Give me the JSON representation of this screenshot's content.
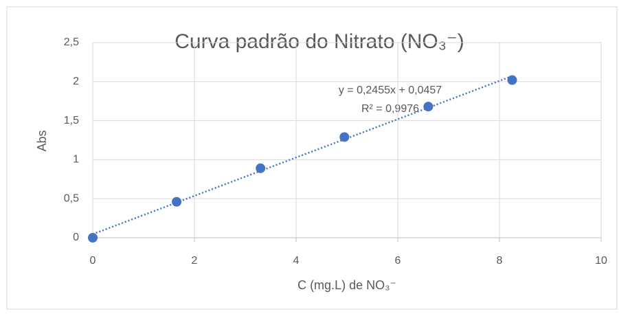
{
  "chart_data": {
    "type": "scatter",
    "title": "Curva padrão do Nitrato (NO₃⁻)",
    "xlabel": "C (mg.L) de NO₃⁻",
    "ylabel": "Abs",
    "x": [
      0,
      1.65,
      3.3,
      4.95,
      6.6,
      8.25
    ],
    "values": [
      0,
      0.46,
      0.89,
      1.29,
      1.68,
      2.02
    ],
    "color": "#4472c4",
    "xlim": [
      0,
      10
    ],
    "xticks": [
      0,
      2,
      4,
      6,
      8,
      10
    ],
    "ylim": [
      0,
      2.5
    ],
    "yticks": [
      0,
      {
        "value": 0.5,
        "label": "0,5"
      },
      1,
      {
        "value": 1.5,
        "label": "1,5"
      },
      2,
      {
        "value": 2.5,
        "label": "2,5"
      }
    ],
    "grid": true,
    "trendline": {
      "slope": 0.2455,
      "intercept": 0.0457,
      "equation": "y = 0,2455x + 0,0457",
      "r2": "R² = 0,9976"
    }
  }
}
